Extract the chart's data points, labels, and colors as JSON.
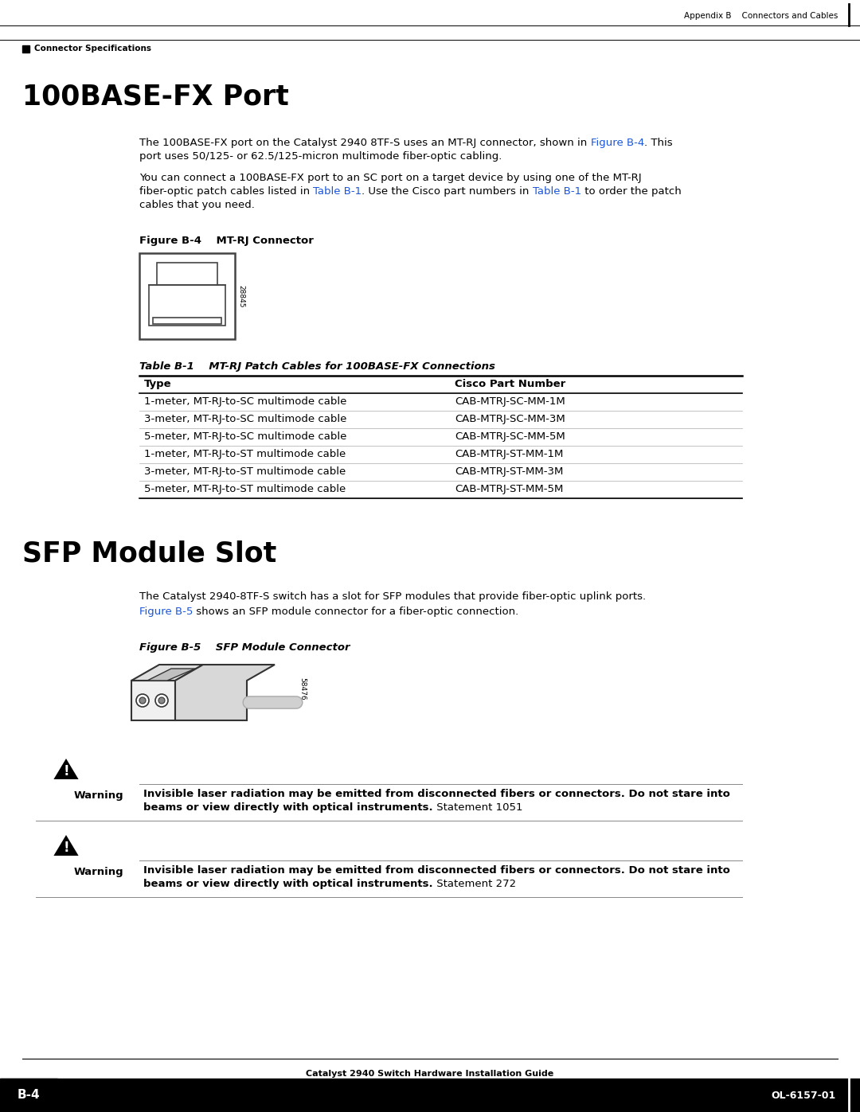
{
  "page_bg": "#ffffff",
  "header_text_right": "Appendix B    Connectors and Cables",
  "header_subtext_left": "Connector Specifications",
  "section1_title": "100BASE-FX Port",
  "para1_line1_pre": "The 100BASE-FX port on the Catalyst 2940 8TF-S uses an MT-RJ connector, shown in ",
  "para1_line1_link": "Figure B-4",
  "para1_line1_post": ". This",
  "para1_line2": "port uses 50/125- or 62.5/125-micron multimode fiber-optic cabling.",
  "para2_line1": "You can connect a 100BASE-FX port to an SC port on a target device by using one of the MT-RJ",
  "para2_line2_pre": "fiber-optic patch cables listed in ",
  "para2_line2_link1": "Table B-1",
  "para2_line2_mid": ". Use the Cisco part numbers in ",
  "para2_line2_link2": "Table B-1",
  "para2_line2_post": " to order the patch",
  "para2_line3": "cables that you need.",
  "fig_b4_label_bold": "Figure B-4",
  "fig_b4_label_rest": "    MT-RJ Connector",
  "fig_b4_code": "28845",
  "table_title_bold": "Table B-1",
  "table_title_rest": "    MT-RJ Patch Cables for 100BASE-FX Connections",
  "table_headers": [
    "Type",
    "Cisco Part Number"
  ],
  "table_rows": [
    [
      "1-meter, MT-RJ-to-SC multimode cable",
      "CAB-MTRJ-SC-MM-1M"
    ],
    [
      "3-meter, MT-RJ-to-SC multimode cable",
      "CAB-MTRJ-SC-MM-3M"
    ],
    [
      "5-meter, MT-RJ-to-SC multimode cable",
      "CAB-MTRJ-SC-MM-5M"
    ],
    [
      "1-meter, MT-RJ-to-ST multimode cable",
      "CAB-MTRJ-ST-MM-1M"
    ],
    [
      "3-meter, MT-RJ-to-ST multimode cable",
      "CAB-MTRJ-ST-MM-3M"
    ],
    [
      "5-meter, MT-RJ-to-ST multimode cable",
      "CAB-MTRJ-ST-MM-5M"
    ]
  ],
  "section2_title": "SFP Module Slot",
  "para3": "The Catalyst 2940-8TF-S switch has a slot for SFP modules that provide fiber-optic uplink ports.",
  "para4_link": "Figure B-5",
  "para4_post": " shows an SFP module connector for a fiber-optic connection.",
  "fig_b5_label_bold": "Figure B-5",
  "fig_b5_label_rest": "    SFP Module Connector",
  "fig_b5_code": "58476",
  "warning_label": "Warning",
  "warning1_bold": "Invisible laser radiation may be emitted from disconnected fibers or connectors. Do not stare into",
  "warning1_bold2": "beams or view directly with optical instruments.",
  "warning1_normal": " Statement 1051",
  "warning2_bold": "Invisible laser radiation may be emitted from disconnected fibers or connectors. Do not stare into",
  "warning2_bold2": "beams or view directly with optical instruments.",
  "warning2_normal": " Statement 272",
  "footer_center": "Catalyst 2940 Switch Hardware Installation Guide",
  "footer_left": "B-4",
  "footer_right": "OL-6157-01",
  "link_color": "#1a56db",
  "body_fs": 9.5,
  "header_fs": 7.5
}
